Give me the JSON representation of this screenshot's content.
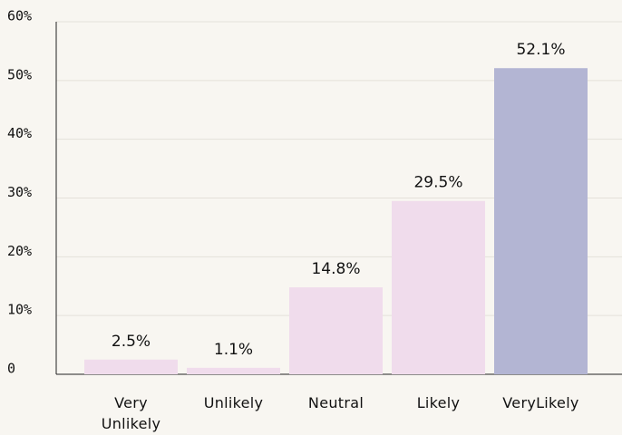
{
  "chart_data": {
    "type": "bar",
    "categories": [
      "Very Unlikely",
      "Unlikely",
      "Neutral",
      "Likely",
      "VeryLikely"
    ],
    "values": [
      2.5,
      1.1,
      14.8,
      29.5,
      52.1
    ],
    "value_labels": [
      "2.5%",
      "1.1%",
      "14.8%",
      "29.5%",
      "52.1%"
    ],
    "colors": [
      "#f0dcec",
      "#f0dcec",
      "#f0dcec",
      "#f0dcec",
      "#b3b5d3"
    ],
    "ylim": [
      0,
      60
    ],
    "yticks": [
      0,
      {
        "value": 10,
        "label": "10%"
      },
      {
        "value": 20,
        "label": "20%"
      },
      {
        "value": 30,
        "label": "30%"
      },
      {
        "value": 40,
        "label": "40%"
      },
      {
        "value": 50,
        "label": "50%"
      },
      {
        "value": 60,
        "label": "60%"
      }
    ],
    "grid": true
  }
}
